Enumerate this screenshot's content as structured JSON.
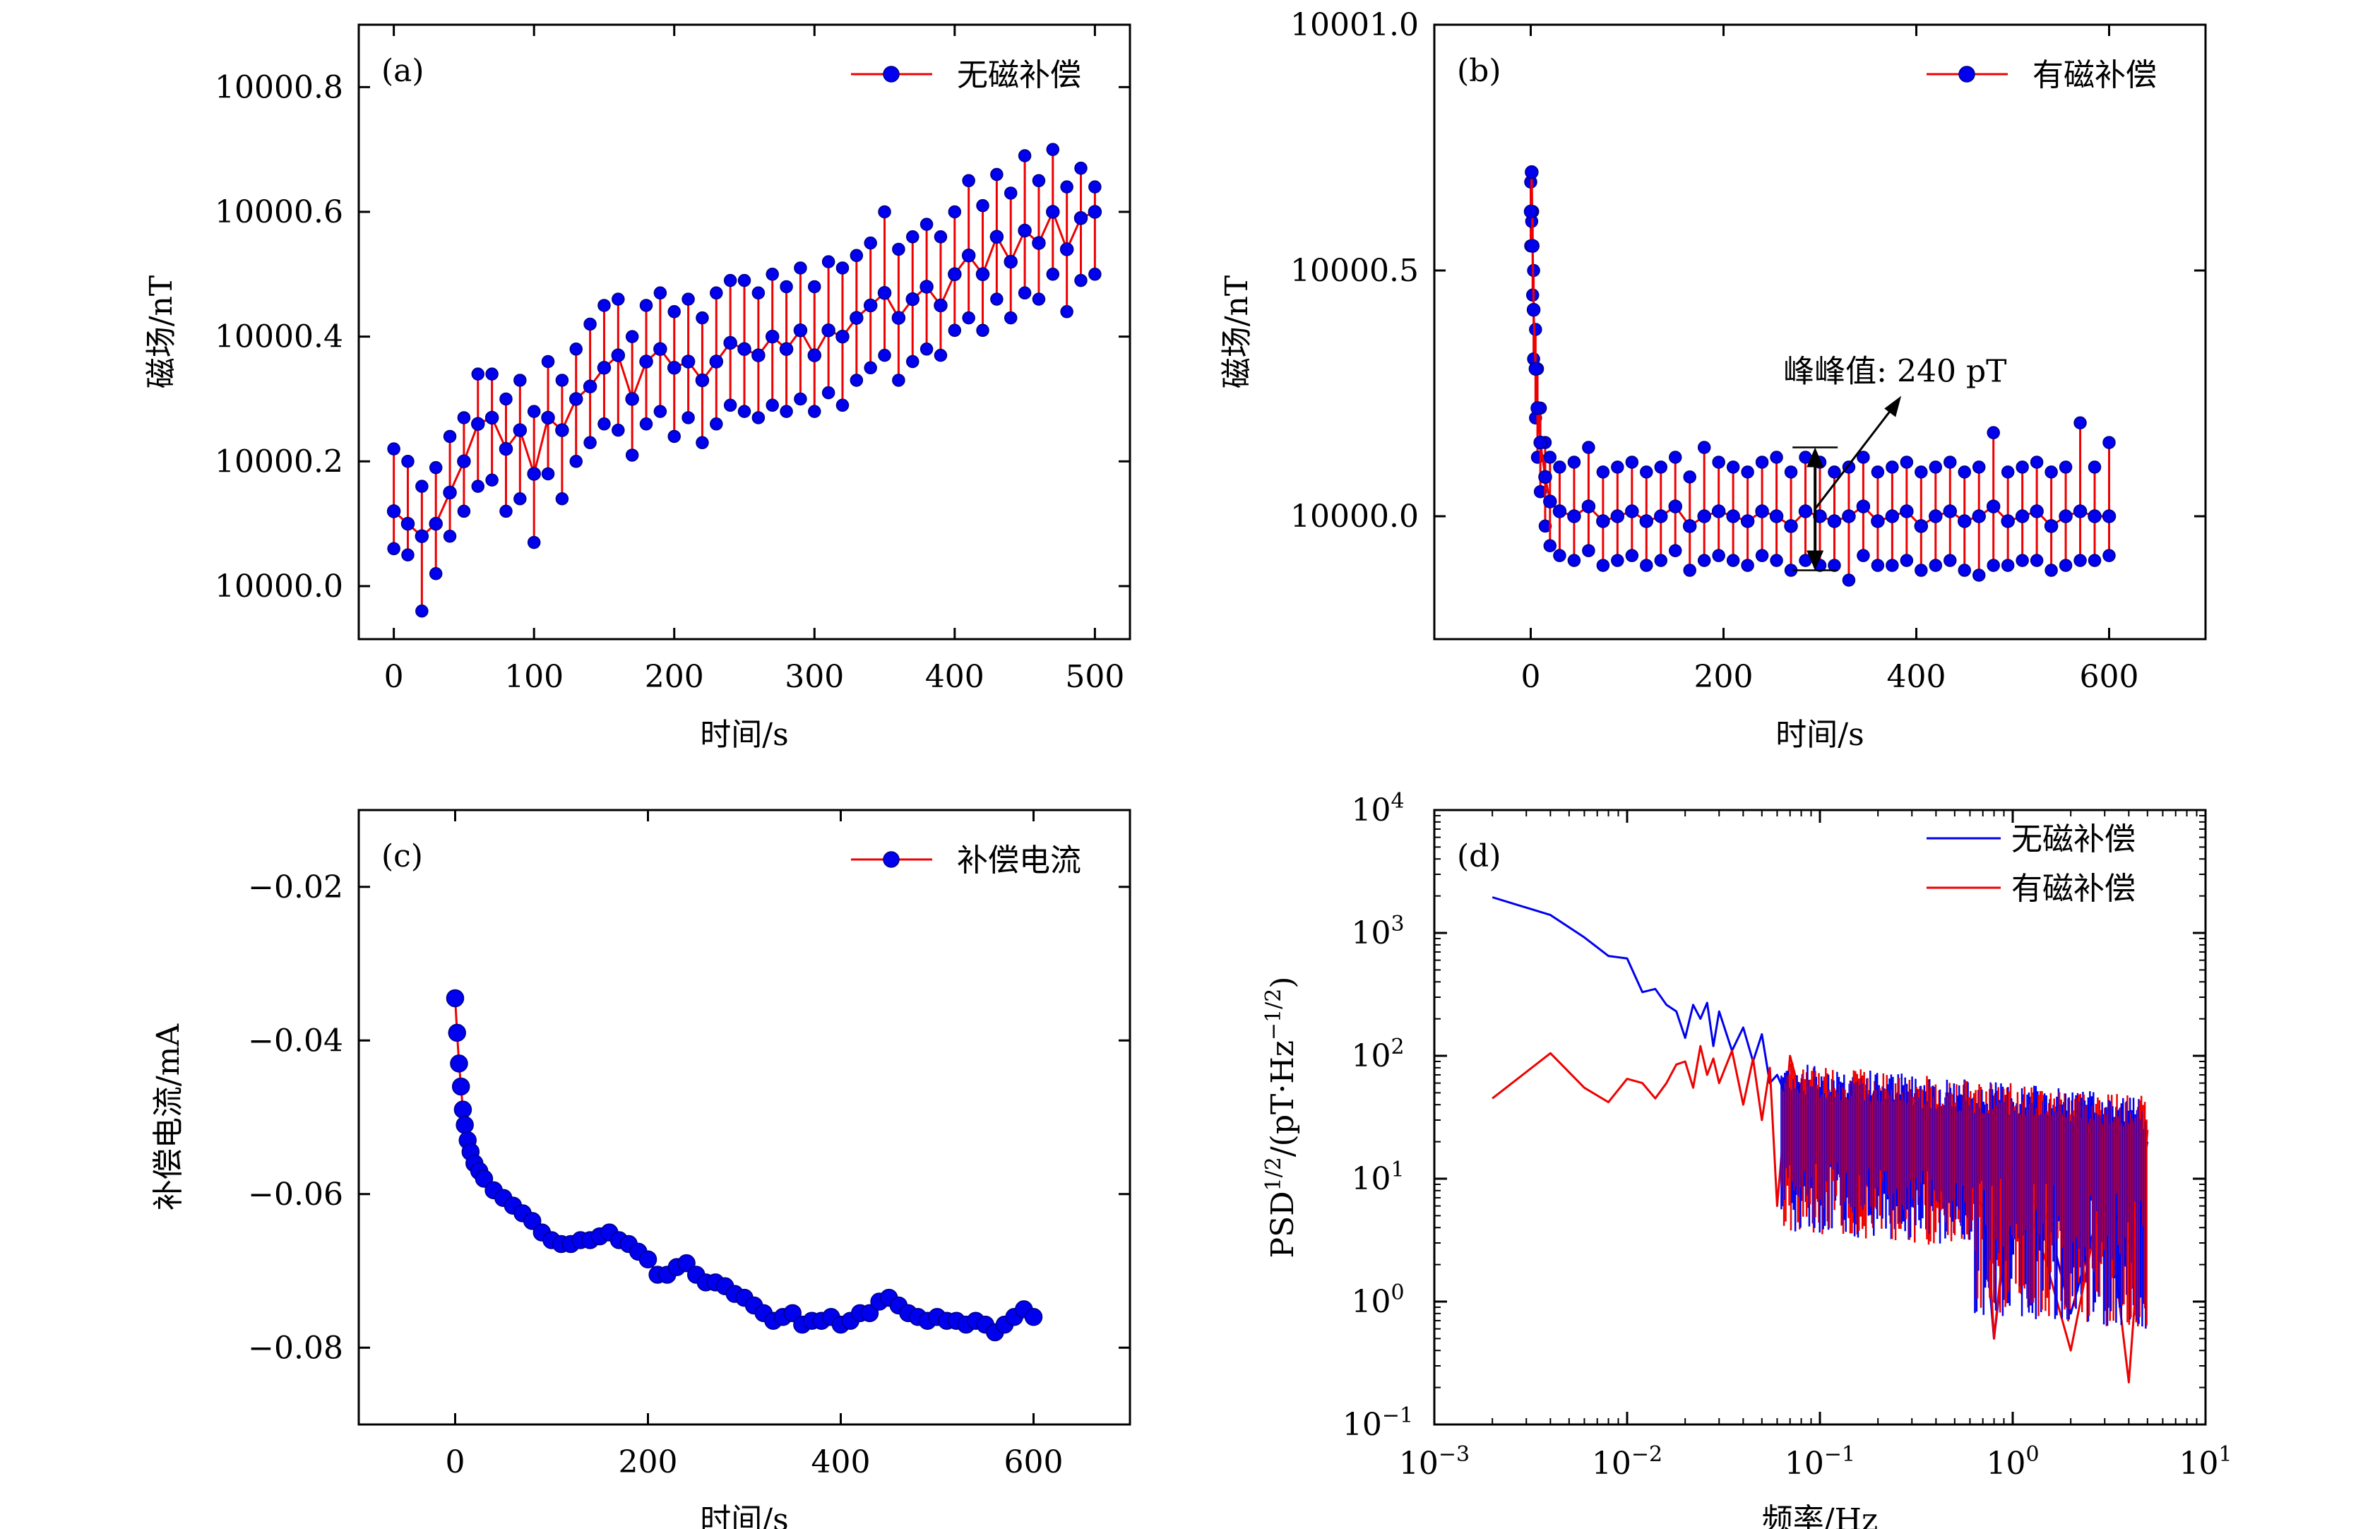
{
  "colors": {
    "blue": "#0000EE",
    "red": "#EE0000",
    "frame": "#000000"
  },
  "chart_data": [
    {
      "id": "a",
      "type": "scatter",
      "panel_label": "(a)",
      "xlabel": "时间/s",
      "ylabel": "磁场/nT",
      "xlim": [
        -25,
        525
      ],
      "ylim": [
        9999.915,
        10000.9
      ],
      "xticks": [
        0,
        100,
        200,
        300,
        400,
        500
      ],
      "xtick_labels": [
        "0",
        "100",
        "200",
        "300",
        "400",
        "500"
      ],
      "yticks": [
        10000.0,
        10000.2,
        10000.4,
        10000.6,
        10000.8
      ],
      "ytick_labels": [
        "10000.0",
        "10000.2",
        "10000.4",
        "10000.6",
        "10000.8"
      ],
      "legend": {
        "position": "top-right",
        "entries": [
          "无磁补偿"
        ]
      },
      "series": [
        {
          "name": "无磁补偿",
          "marker": "circle",
          "x": [
            0,
            10,
            20,
            30,
            40,
            50,
            60,
            70,
            80,
            90,
            100,
            110,
            120,
            130,
            140,
            150,
            160,
            170,
            180,
            190,
            200,
            210,
            220,
            230,
            240,
            250,
            260,
            270,
            280,
            290,
            300,
            310,
            320,
            330,
            340,
            350,
            360,
            370,
            380,
            390,
            400,
            410,
            420,
            430,
            440,
            450,
            460,
            470,
            480,
            490,
            500
          ],
          "y": [
            10000.12,
            10000.1,
            10000.08,
            10000.1,
            10000.15,
            10000.2,
            10000.26,
            10000.27,
            10000.22,
            10000.25,
            10000.18,
            10000.27,
            10000.25,
            10000.3,
            10000.32,
            10000.35,
            10000.37,
            10000.3,
            10000.36,
            10000.38,
            10000.35,
            10000.36,
            10000.33,
            10000.36,
            10000.39,
            10000.38,
            10000.37,
            10000.4,
            10000.38,
            10000.41,
            10000.37,
            10000.41,
            10000.4,
            10000.43,
            10000.45,
            10000.47,
            10000.43,
            10000.46,
            10000.48,
            10000.45,
            10000.5,
            10000.53,
            10000.5,
            10000.56,
            10000.52,
            10000.57,
            10000.55,
            10000.6,
            10000.54,
            10000.59,
            10000.6
          ],
          "y_min": [
            10000.06,
            10000.05,
            9999.96,
            10000.02,
            10000.08,
            10000.12,
            10000.16,
            10000.17,
            10000.12,
            10000.14,
            10000.07,
            10000.18,
            10000.14,
            10000.2,
            10000.23,
            10000.26,
            10000.25,
            10000.21,
            10000.26,
            10000.28,
            10000.24,
            10000.27,
            10000.23,
            10000.26,
            10000.29,
            10000.28,
            10000.27,
            10000.29,
            10000.28,
            10000.3,
            10000.28,
            10000.31,
            10000.29,
            10000.33,
            10000.35,
            10000.37,
            10000.33,
            10000.36,
            10000.38,
            10000.37,
            10000.41,
            10000.43,
            10000.41,
            10000.46,
            10000.43,
            10000.47,
            10000.46,
            10000.5,
            10000.44,
            10000.49,
            10000.5
          ],
          "y_max": [
            10000.22,
            10000.2,
            10000.16,
            10000.19,
            10000.24,
            10000.27,
            10000.34,
            10000.34,
            10000.3,
            10000.33,
            10000.28,
            10000.36,
            10000.33,
            10000.38,
            10000.42,
            10000.45,
            10000.46,
            10000.4,
            10000.45,
            10000.47,
            10000.44,
            10000.46,
            10000.43,
            10000.47,
            10000.49,
            10000.49,
            10000.47,
            10000.5,
            10000.48,
            10000.51,
            10000.48,
            10000.52,
            10000.51,
            10000.53,
            10000.55,
            10000.6,
            10000.54,
            10000.56,
            10000.58,
            10000.56,
            10000.6,
            10000.65,
            10000.61,
            10000.66,
            10000.63,
            10000.69,
            10000.65,
            10000.7,
            10000.64,
            10000.67,
            10000.64
          ]
        }
      ]
    },
    {
      "id": "b",
      "type": "scatter",
      "panel_label": "(b)",
      "xlabel": "时间/s",
      "ylabel": "磁场/nT",
      "xlim": [
        -100,
        700
      ],
      "ylim": [
        9999.75,
        10001.0
      ],
      "xticks": [
        0,
        200,
        400,
        600
      ],
      "xtick_labels": [
        "0",
        "200",
        "400",
        "600"
      ],
      "yticks": [
        10000.0,
        10000.5,
        10001.0
      ],
      "ytick_labels": [
        "10000.0",
        "10000.5",
        "10001.0"
      ],
      "legend": {
        "position": "top-right",
        "entries": [
          "有磁补偿"
        ]
      },
      "annotation": {
        "text": "峰峰值: 240 pT",
        "arrow_x": 295,
        "arrow_low": 9999.89,
        "arrow_high": 10000.14
      },
      "series": [
        {
          "name": "有磁补偿",
          "marker": "circle",
          "x": [
            0,
            1,
            2,
            3,
            5,
            7,
            10,
            15,
            20,
            30,
            45,
            60,
            75,
            90,
            105,
            120,
            135,
            150,
            165,
            180,
            195,
            210,
            225,
            240,
            255,
            270,
            285,
            300,
            315,
            330,
            345,
            360,
            375,
            390,
            405,
            420,
            435,
            450,
            465,
            480,
            495,
            510,
            525,
            540,
            555,
            570,
            585,
            600
          ],
          "y": [
            10000.62,
            10000.7,
            10000.55,
            10000.42,
            10000.3,
            10000.22,
            10000.15,
            10000.08,
            10000.03,
            10000.01,
            10000.0,
            10000.02,
            9999.99,
            10000.0,
            10000.01,
            9999.99,
            10000.0,
            10000.02,
            9999.98,
            10000.0,
            10000.01,
            10000.0,
            9999.99,
            10000.01,
            10000.0,
            9999.98,
            10000.01,
            10000.0,
            9999.99,
            10000.0,
            10000.02,
            9999.99,
            10000.0,
            10000.01,
            9999.98,
            10000.0,
            10000.01,
            9999.99,
            10000.0,
            10000.02,
            9999.99,
            10000.0,
            10000.01,
            9999.98,
            10000.0,
            10000.01,
            10000.0,
            10000.0
          ],
          "y_min": [
            10000.55,
            10000.6,
            10000.45,
            10000.32,
            10000.2,
            10000.12,
            10000.05,
            9999.98,
            9999.94,
            9999.92,
            9999.91,
            9999.93,
            9999.9,
            9999.91,
            9999.92,
            9999.9,
            9999.91,
            9999.93,
            9999.89,
            9999.91,
            9999.92,
            9999.91,
            9999.9,
            9999.92,
            9999.91,
            9999.89,
            9999.91,
            9999.9,
            9999.9,
            9999.87,
            9999.92,
            9999.9,
            9999.9,
            9999.91,
            9999.89,
            9999.9,
            9999.91,
            9999.89,
            9999.88,
            9999.9,
            9999.9,
            9999.91,
            9999.91,
            9999.89,
            9999.9,
            9999.91,
            9999.91,
            9999.92
          ],
          "y_max": [
            10000.68,
            10000.7,
            10000.62,
            10000.5,
            10000.38,
            10000.3,
            10000.22,
            10000.15,
            10000.12,
            10000.1,
            10000.11,
            10000.14,
            10000.09,
            10000.1,
            10000.11,
            10000.09,
            10000.1,
            10000.12,
            10000.08,
            10000.14,
            10000.11,
            10000.1,
            10000.09,
            10000.11,
            10000.12,
            10000.09,
            10000.12,
            10000.11,
            10000.09,
            10000.1,
            10000.12,
            10000.09,
            10000.1,
            10000.11,
            10000.09,
            10000.1,
            10000.11,
            10000.09,
            10000.1,
            10000.17,
            10000.09,
            10000.1,
            10000.11,
            10000.09,
            10000.1,
            10000.19,
            10000.1,
            10000.15
          ]
        }
      ]
    },
    {
      "id": "c",
      "type": "scatter",
      "panel_label": "(c)",
      "xlabel": "时间/s",
      "ylabel": "补偿电流/mA",
      "xlim": [
        -100,
        700
      ],
      "ylim": [
        -0.09,
        -0.01
      ],
      "xticks": [
        0,
        200,
        400,
        600
      ],
      "xtick_labels": [
        "0",
        "200",
        "400",
        "600"
      ],
      "yticks": [
        -0.02,
        -0.04,
        -0.06,
        -0.08
      ],
      "ytick_labels": [
        "−0.02",
        "−0.04",
        "−0.06",
        "−0.08"
      ],
      "legend": {
        "position": "top-right",
        "entries": [
          "补偿电流"
        ]
      },
      "series": [
        {
          "name": "补偿电流",
          "marker": "circle",
          "x": [
            0,
            2,
            4,
            6,
            8,
            10,
            13,
            16,
            20,
            25,
            30,
            40,
            50,
            60,
            70,
            80,
            90,
            100,
            110,
            120,
            130,
            140,
            150,
            160,
            170,
            180,
            190,
            200,
            210,
            220,
            230,
            240,
            250,
            260,
            270,
            280,
            290,
            300,
            310,
            320,
            330,
            340,
            350,
            360,
            370,
            380,
            390,
            400,
            410,
            420,
            430,
            440,
            450,
            460,
            470,
            480,
            490,
            500,
            510,
            520,
            530,
            540,
            550,
            560,
            570,
            580,
            590,
            600
          ],
          "y": [
            -0.0345,
            -0.039,
            -0.043,
            -0.046,
            -0.049,
            -0.051,
            -0.053,
            -0.0545,
            -0.056,
            -0.057,
            -0.058,
            -0.0595,
            -0.0605,
            -0.0615,
            -0.0625,
            -0.0635,
            -0.065,
            -0.066,
            -0.0665,
            -0.0665,
            -0.066,
            -0.066,
            -0.0655,
            -0.065,
            -0.066,
            -0.0665,
            -0.0675,
            -0.0685,
            -0.0705,
            -0.0705,
            -0.0695,
            -0.069,
            -0.0705,
            -0.0715,
            -0.0715,
            -0.072,
            -0.073,
            -0.0735,
            -0.0745,
            -0.0755,
            -0.0765,
            -0.076,
            -0.0755,
            -0.077,
            -0.0765,
            -0.0765,
            -0.076,
            -0.077,
            -0.0765,
            -0.0755,
            -0.0755,
            -0.074,
            -0.0735,
            -0.0745,
            -0.0755,
            -0.076,
            -0.0765,
            -0.076,
            -0.0765,
            -0.0765,
            -0.077,
            -0.0765,
            -0.077,
            -0.078,
            -0.077,
            -0.076,
            -0.075,
            -0.076
          ]
        }
      ]
    },
    {
      "id": "d",
      "type": "line",
      "panel_label": "(d)",
      "xlabel": "频率/Hz",
      "ylabel_parts": [
        "PSD",
        "1/2",
        "/(pT·Hz",
        "−1/2",
        ")"
      ],
      "x_scale": "log",
      "y_scale": "log",
      "xlim": [
        0.001,
        10
      ],
      "ylim": [
        0.1,
        10000
      ],
      "xtick_exponents": [
        "−3",
        "−2",
        "−1",
        "0",
        "1"
      ],
      "ytick_exponents": [
        "−1",
        "0",
        "1",
        "2",
        "3",
        "4"
      ],
      "tick_base": "10",
      "legend": {
        "position": "top-right",
        "entries": [
          "无磁补偿",
          "有磁补偿"
        ]
      },
      "series": [
        {
          "name": "无磁补偿",
          "color": "#0000EE",
          "x": [
            0.002,
            0.004,
            0.006,
            0.008,
            0.01,
            0.012,
            0.014,
            0.016,
            0.018,
            0.02,
            0.022,
            0.024,
            0.026,
            0.028,
            0.03,
            0.035,
            0.04,
            0.045,
            0.05,
            0.055,
            0.06,
            0.07,
            0.08,
            0.09,
            0.1,
            0.12,
            0.15,
            0.2,
            0.25,
            0.3,
            0.4,
            0.5,
            0.7,
            0.8,
            1.0,
            1.5,
            2.0,
            3.0,
            4.0,
            5.0
          ],
          "y": [
            1950,
            1400,
            920,
            650,
            620,
            330,
            350,
            260,
            230,
            140,
            260,
            200,
            270,
            120,
            230,
            110,
            170,
            90,
            150,
            60,
            70,
            40,
            60,
            30,
            25,
            50,
            30,
            40,
            18,
            25,
            14,
            10,
            6,
            0.5,
            10,
            5,
            0.8,
            8,
            3,
            20
          ]
        },
        {
          "name": "有磁补偿",
          "color": "#EE0000",
          "x": [
            0.002,
            0.004,
            0.006,
            0.008,
            0.01,
            0.012,
            0.014,
            0.016,
            0.018,
            0.02,
            0.022,
            0.024,
            0.026,
            0.028,
            0.03,
            0.035,
            0.04,
            0.045,
            0.05,
            0.055,
            0.06,
            0.07,
            0.08,
            0.09,
            0.1,
            0.12,
            0.15,
            0.2,
            0.25,
            0.3,
            0.4,
            0.5,
            0.7,
            0.8,
            1.0,
            1.5,
            2.0,
            3.0,
            4.0,
            5.0
          ],
          "y": [
            45,
            105,
            55,
            42,
            65,
            60,
            45,
            60,
            85,
            90,
            55,
            120,
            70,
            95,
            60,
            110,
            40,
            95,
            30,
            80,
            6,
            100,
            45,
            20,
            50,
            25,
            40,
            20,
            30,
            12,
            35,
            8,
            20,
            0.5,
            15,
            2,
            0.4,
            10,
            0.22,
            25
          ]
        }
      ]
    }
  ]
}
